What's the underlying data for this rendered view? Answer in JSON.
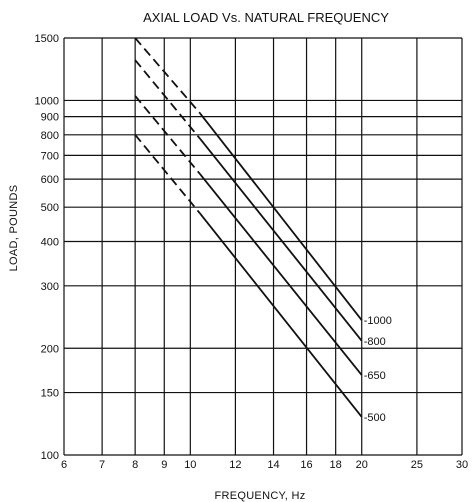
{
  "chart_data": {
    "type": "line",
    "title": "AXIAL LOAD Vs. NATURAL FREQUENCY",
    "xlabel": "FREQUENCY, Hz",
    "ylabel": "LOAD, POUNDS",
    "x_scale": "log",
    "y_scale": "log",
    "xlim": [
      6,
      30
    ],
    "ylim": [
      100,
      1500
    ],
    "x_ticks": [
      6,
      7,
      8,
      9,
      10,
      12,
      14,
      16,
      18,
      20,
      25,
      30
    ],
    "y_ticks": [
      100,
      150,
      200,
      300,
      400,
      500,
      600,
      700,
      800,
      900,
      1000,
      1500
    ],
    "grid": true,
    "series": [
      {
        "name": "-1000",
        "dashed_segment": {
          "x": [
            8,
            10.4
          ],
          "y": [
            1500,
            920
          ]
        },
        "solid_segment": {
          "x": [
            10.4,
            20
          ],
          "y": [
            920,
            240
          ]
        }
      },
      {
        "name": "-800",
        "dashed_segment": {
          "x": [
            8,
            10.4
          ],
          "y": [
            1300,
            780
          ]
        },
        "solid_segment": {
          "x": [
            10.4,
            20
          ],
          "y": [
            780,
            210
          ]
        }
      },
      {
        "name": "-650",
        "dashed_segment": {
          "x": [
            8,
            10.4
          ],
          "y": [
            1030,
            620
          ]
        },
        "solid_segment": {
          "x": [
            10.4,
            20
          ],
          "y": [
            620,
            168
          ]
        }
      },
      {
        "name": "-500",
        "dashed_segment": {
          "x": [
            8,
            10.4
          ],
          "y": [
            800,
            480
          ]
        },
        "solid_segment": {
          "x": [
            10.4,
            20
          ],
          "y": [
            480,
            128
          ]
        }
      }
    ]
  }
}
